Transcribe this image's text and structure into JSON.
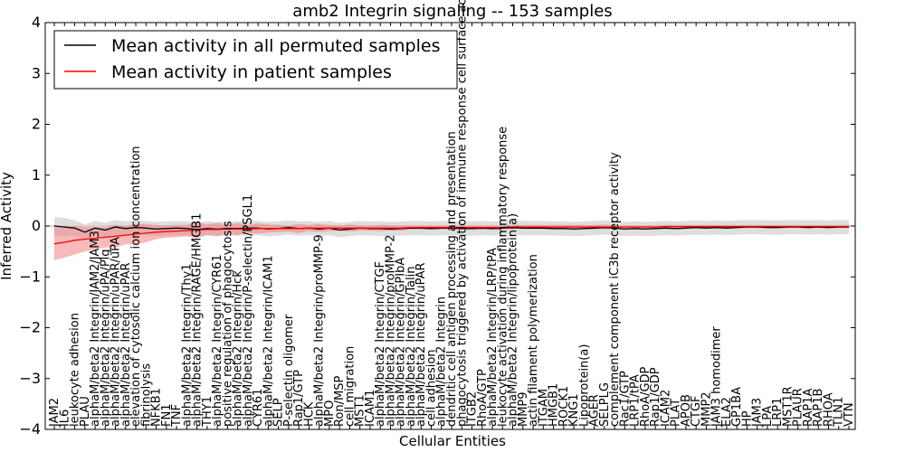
{
  "chart_data": {
    "type": "line",
    "title": "amb2 Integrin signaling -- 153 samples",
    "xlabel": "Cellular Entities",
    "ylabel": "Inferred Activity",
    "ylim": [
      -4,
      4
    ],
    "yticks": [
      -4,
      -3,
      -2,
      -1,
      0,
      1,
      2,
      3,
      4
    ],
    "grid": false,
    "legend_position": "top-left",
    "colors": {
      "permuted_line": "#000000",
      "permuted_band": "#c8c8c8",
      "patient_line": "#ff0000",
      "patient_band": "#f08080",
      "zero_line": "#ff0000"
    },
    "categories": [
      "JAM2",
      "IL6",
      "leukocyte adhesion",
      "PLAU",
      "alphaM/beta2 Integrin/JAM2/JAM3",
      "alphaM/beta2 Integrin/uPA/Plg",
      "alphaM/beta2 Integrin/uPAR/uPA",
      "alphaM/beta2 Integrin/uPAR",
      "elevation of cytosolic calcium ion concentration",
      "fibrinolysis",
      "NFKB1",
      "FN1",
      "TNF",
      "alphaM/beta2 Integrin/Thy1",
      "alphaM/beta2 Integrin/RAGE/HMGB1",
      "THY1",
      "alphaM/beta2 Integrin/CYR61",
      "positive regulation of phagocytosis",
      "alphaM/beta2 Integrin/Hck",
      "alphaM/beta2 Integrin/P-selectin/PSGL1",
      "CYR61",
      "alphaM/beta2 Integrin/ICAM1",
      "SELP",
      "P-selectin oligomer",
      "Rap1/GTP",
      "HCK",
      "alphaM/beta2 Integrin/proMMP-9",
      "MPO",
      "Ron/MSP",
      "cell migration",
      "MST1",
      "ICAM1",
      "alphaM/beta2 Integrin/CTGF",
      "alphaM/beta2 Integrin/proMMP-2",
      "alphaM/beta2 Integrin/GPIbA",
      "alphaM/beta2 Integrin/Talin",
      "alphaM/beta2 Integrin/uPAR",
      "cell adhesion",
      "alphaM/beta2 Integrin",
      "dendritic cell antigen processing and presentation",
      "phagocytosis triggered by activation of immune response cell surface activating receptor",
      "ITGB2",
      "RhoA/GTP",
      "alphaM/beta2 Integrin/LRP/tPA",
      "leukocyte activation during inflammatory response",
      "alphaM/beta2 Integrin/lipoprotein(a)",
      "MMP9",
      "actin filament polymerization",
      "ITGAM",
      "HMGB1",
      "ROCK1",
      "KNG1",
      "Lipoprotein(a)",
      "AGER",
      "SELPLG",
      "complement component iC3b receptor activity",
      "Rac1/GTP",
      "LRP1/tPA",
      "RhoA/GDP",
      "Rap1/GDP",
      "ICAM2",
      "PLAT",
      "APOB",
      "CTGF",
      "MMP2",
      "JAM3 homodimer",
      "ELA2",
      "GP1BA",
      "HP",
      "JAM3",
      "LPA",
      "LRP1",
      "MST1R",
      "PLAUR",
      "RAP1A",
      "RAP1B",
      "RHOA",
      "TLN1",
      "VTN"
    ],
    "series": [
      {
        "name": "Mean activity in all permuted samples",
        "color": "#000000",
        "values": [
          0.0,
          -0.02,
          -0.04,
          -0.12,
          -0.04,
          -0.08,
          -0.02,
          -0.05,
          -0.03,
          -0.04,
          -0.06,
          -0.05,
          -0.04,
          -0.05,
          -0.07,
          -0.05,
          -0.06,
          -0.05,
          -0.05,
          -0.04,
          -0.04,
          -0.06,
          -0.05,
          -0.03,
          -0.05,
          -0.04,
          -0.06,
          -0.04,
          -0.08,
          -0.06,
          -0.04,
          -0.05,
          -0.05,
          -0.06,
          -0.05,
          -0.04,
          -0.04,
          -0.05,
          -0.04,
          -0.04,
          -0.05,
          -0.05,
          -0.04,
          -0.05,
          -0.04,
          -0.03,
          -0.04,
          -0.04,
          -0.04,
          -0.05,
          -0.05,
          -0.06,
          -0.05,
          -0.04,
          -0.03,
          -0.04,
          -0.06,
          -0.05,
          -0.06,
          -0.05,
          -0.04,
          -0.05,
          -0.04,
          -0.03,
          -0.04,
          -0.03,
          -0.04,
          -0.03,
          -0.02,
          -0.02,
          -0.03,
          -0.03,
          -0.02,
          -0.02,
          -0.03,
          -0.02,
          -0.03,
          -0.02,
          -0.02
        ],
        "band_half_width": [
          0.18,
          0.18,
          0.15,
          0.15,
          0.14,
          0.14,
          0.14,
          0.14,
          0.14,
          0.14,
          0.14,
          0.14,
          0.14,
          0.14,
          0.14,
          0.14,
          0.14,
          0.14,
          0.14,
          0.14,
          0.14,
          0.14,
          0.14,
          0.14,
          0.14,
          0.14,
          0.14,
          0.14,
          0.14,
          0.14,
          0.14,
          0.14,
          0.14,
          0.14,
          0.14,
          0.14,
          0.14,
          0.14,
          0.14,
          0.14,
          0.14,
          0.14,
          0.14,
          0.14,
          0.14,
          0.14,
          0.14,
          0.14,
          0.14,
          0.14,
          0.14,
          0.14,
          0.14,
          0.14,
          0.14,
          0.14,
          0.14,
          0.14,
          0.14,
          0.14,
          0.14,
          0.14,
          0.14,
          0.14,
          0.14,
          0.14,
          0.14,
          0.14,
          0.14,
          0.14,
          0.14,
          0.14,
          0.14,
          0.14,
          0.14,
          0.14,
          0.14,
          0.14,
          0.14
        ]
      },
      {
        "name": "Mean activity in patient samples",
        "color": "#ff0000",
        "values": [
          -0.35,
          -0.32,
          -0.28,
          -0.26,
          -0.24,
          -0.22,
          -0.2,
          -0.18,
          -0.16,
          -0.14,
          -0.12,
          -0.11,
          -0.1,
          -0.09,
          -0.08,
          -0.07,
          -0.07,
          -0.06,
          -0.06,
          -0.06,
          -0.05,
          -0.05,
          -0.05,
          -0.05,
          -0.05,
          -0.04,
          -0.04,
          -0.04,
          -0.04,
          -0.04,
          -0.04,
          -0.04,
          -0.04,
          -0.04,
          -0.04,
          -0.03,
          -0.03,
          -0.03,
          -0.03,
          -0.03,
          -0.03,
          -0.03,
          -0.03,
          -0.03,
          -0.03,
          -0.02,
          -0.02,
          -0.02,
          -0.02,
          -0.02,
          -0.02,
          -0.02,
          -0.02,
          -0.02,
          -0.02,
          -0.02,
          -0.02,
          -0.02,
          -0.02,
          -0.02,
          -0.01,
          -0.01,
          -0.01,
          -0.01,
          -0.01,
          -0.01,
          -0.01,
          -0.01,
          -0.01,
          -0.01,
          -0.01,
          -0.01,
          -0.01,
          -0.01,
          -0.01,
          -0.01,
          -0.01,
          -0.01,
          -0.01
        ],
        "band_half_width": [
          0.32,
          0.3,
          0.28,
          0.24,
          0.22,
          0.2,
          0.22,
          0.18,
          0.2,
          0.18,
          0.14,
          0.12,
          0.12,
          0.11,
          0.16,
          0.1,
          0.13,
          0.09,
          0.12,
          0.08,
          0.1,
          0.08,
          0.07,
          0.06,
          0.09,
          0.06,
          0.08,
          0.06,
          0.05,
          0.07,
          0.05,
          0.05,
          0.06,
          0.05,
          0.05,
          0.04,
          0.04,
          0.04,
          0.04,
          0.04,
          0.04,
          0.04,
          0.04,
          0.04,
          0.04,
          0.04,
          0.04,
          0.04,
          0.04,
          0.04,
          0.04,
          0.04,
          0.04,
          0.04,
          0.05,
          0.03,
          0.03,
          0.03,
          0.03,
          0.03,
          0.03,
          0.03,
          0.03,
          0.03,
          0.03,
          0.03,
          0.03,
          0.03,
          0.03,
          0.03,
          0.03,
          0.03,
          0.03,
          0.03,
          0.03,
          0.03,
          0.03,
          0.03,
          0.03
        ]
      }
    ]
  }
}
